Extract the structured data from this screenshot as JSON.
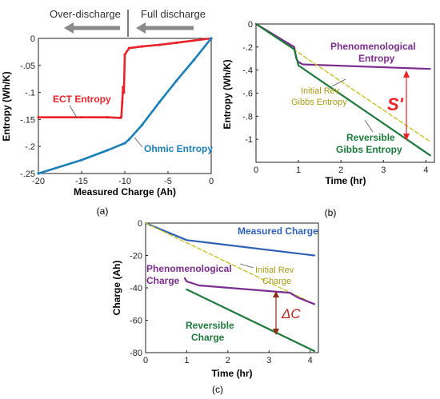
{
  "chart_data": [
    {
      "type": "scatter",
      "panel_label": "(a)",
      "xlabel": "Measured Charge (Ah)",
      "ylabel": "Entropy (Wh/K)",
      "xlim": [
        -20,
        0
      ],
      "ylim": [
        -0.25,
        0
      ],
      "xticks": [
        -20,
        -15,
        -10,
        -5,
        0
      ],
      "yticks": [
        0,
        -0.05,
        -0.1,
        -0.15,
        -0.2,
        -0.25
      ],
      "grid": false,
      "arrow_labels": [
        "Over-discharge",
        "Full discharge"
      ],
      "series": [
        {
          "name": "ECT Entropy",
          "color": "#e8232a",
          "x": [
            -20,
            -15,
            -12,
            -10.5,
            -10.4,
            -10.3,
            -10.2,
            -10.1,
            -10,
            -9.5,
            -8,
            -6,
            -4,
            -2,
            0
          ],
          "y": [
            -0.146,
            -0.146,
            -0.146,
            -0.147,
            -0.145,
            -0.118,
            -0.09,
            -0.1,
            -0.03,
            -0.018,
            -0.015,
            -0.012,
            -0.008,
            -0.004,
            0
          ]
        },
        {
          "name": "Ohmic Entropy",
          "color": "#1b7fb8",
          "x": [
            -20,
            -15,
            -12,
            -10,
            -9.5,
            -8,
            -6,
            -4,
            -2,
            0
          ],
          "y": [
            -0.25,
            -0.225,
            -0.207,
            -0.194,
            -0.187,
            -0.16,
            -0.118,
            -0.078,
            -0.04,
            0
          ]
        }
      ]
    },
    {
      "type": "line",
      "panel_label": "(b)",
      "xlabel": "Time (hr)",
      "ylabel": "Entropy (Wh/K)",
      "xlim": [
        0,
        4.2
      ],
      "ylim": [
        -1.2,
        0
      ],
      "xticks": [
        0,
        1,
        2,
        3,
        4
      ],
      "yticks": [
        0,
        -0.2,
        -0.4,
        -0.6,
        -0.8,
        -1
      ],
      "grid": false,
      "annotation": "S'",
      "series": [
        {
          "name": "Phenomenological Entropy",
          "color": "#7b2d8e",
          "x": [
            0,
            0.9,
            0.95,
            1.0,
            1.1,
            4.1
          ],
          "y": [
            0,
            -0.2,
            -0.3,
            -0.33,
            -0.35,
            -0.39
          ]
        },
        {
          "name": "Initial Rev Gibbs Entropy",
          "color": "#c8c22a",
          "dashed": true,
          "x": [
            0,
            4.1
          ],
          "y": [
            0,
            -1.02
          ]
        },
        {
          "name": "Reversible Gibbs Entropy",
          "color": "#1e7a3c",
          "x": [
            0,
            0.9,
            1.0,
            4.1
          ],
          "y": [
            0,
            -0.22,
            -0.36,
            -1.14
          ]
        }
      ]
    },
    {
      "type": "line",
      "panel_label": "(c)",
      "xlabel": "Time (hr)",
      "ylabel": "Charge (Ah)",
      "xlim": [
        0,
        4.2
      ],
      "ylim": [
        -80,
        0
      ],
      "xticks": [
        0,
        1,
        2,
        3,
        4
      ],
      "yticks": [
        0,
        -20,
        -40,
        -60,
        -80
      ],
      "grid": false,
      "annotation": "ΔC",
      "series": [
        {
          "name": "Measured Charge",
          "color": "#2f5fb3",
          "x": [
            0,
            0.9,
            1.0,
            4.1
          ],
          "y": [
            0,
            -9.5,
            -10.5,
            -20
          ]
        },
        {
          "name": "Initial Rev Charge",
          "color": "#c8c22a",
          "dashed": true,
          "x": [
            0,
            4.1
          ],
          "y": [
            0,
            -50
          ]
        },
        {
          "name": "Phenomenological Charge",
          "color": "#7b2d8e",
          "x": [
            0.95,
            1.0,
            1.3,
            3.5,
            3.7,
            4.1
          ],
          "y": [
            -34,
            -36,
            -38.5,
            -43,
            -46,
            -50
          ]
        },
        {
          "name": "Reversible Charge",
          "color": "#1e7a3c",
          "x": [
            1.0,
            4.1
          ],
          "y": [
            -41,
            -79
          ]
        }
      ]
    }
  ]
}
